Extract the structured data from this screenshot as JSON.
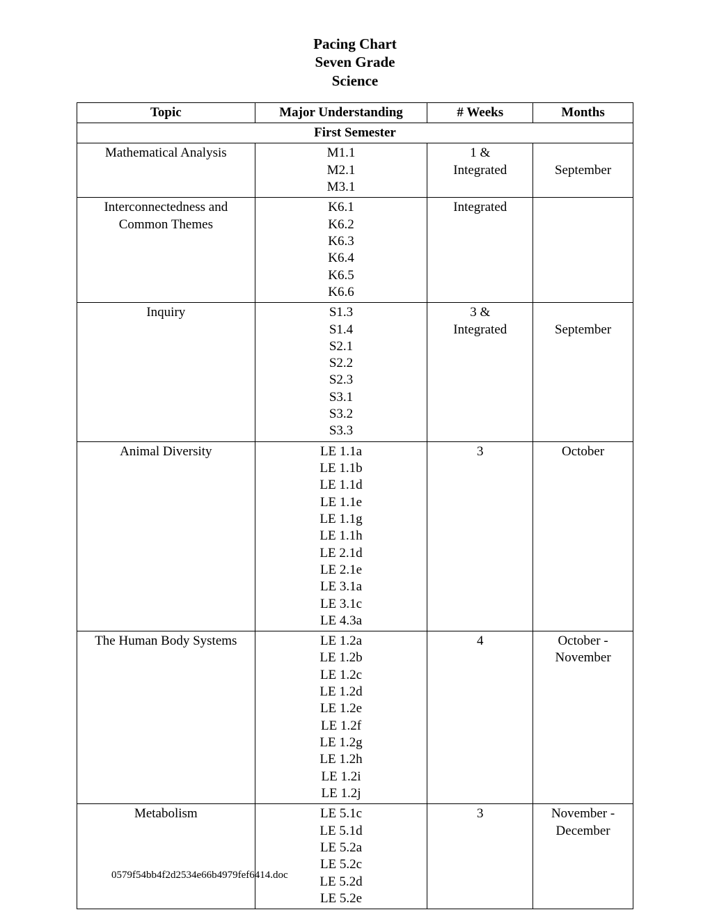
{
  "title": {
    "line1": "Pacing Chart",
    "line2": "Seven Grade",
    "line3": "Science"
  },
  "headers": {
    "topic": "Topic",
    "major": "Major Understanding",
    "weeks": "# Weeks",
    "months": "Months"
  },
  "semester_label": "First Semester",
  "rows": [
    {
      "topic": [
        "Mathematical Analysis"
      ],
      "major": [
        "M1.1",
        "M2.1",
        "M3.1"
      ],
      "weeks": [
        "1 &",
        "Integrated"
      ],
      "months": [
        "",
        "September"
      ]
    },
    {
      "topic": [
        "Interconnectedness and",
        "Common Themes"
      ],
      "major": [
        "K6.1",
        "K6.2",
        "K6.3",
        "K6.4",
        "K6.5",
        "K6.6"
      ],
      "weeks": [
        "Integrated"
      ],
      "months": []
    },
    {
      "topic": [
        "Inquiry"
      ],
      "major": [
        "S1.3",
        "S1.4",
        "S2.1",
        "S2.2",
        "S2.3",
        "S3.1",
        "S3.2",
        "S3.3"
      ],
      "weeks": [
        "3 &",
        "Integrated"
      ],
      "months": [
        "",
        "September"
      ]
    },
    {
      "topic": [
        "Animal Diversity"
      ],
      "major": [
        "LE 1.1a",
        "LE 1.1b",
        "LE 1.1d",
        "LE 1.1e",
        "LE 1.1g",
        "LE 1.1h",
        "LE 2.1d",
        "LE 2.1e",
        "LE 3.1a",
        "LE 3.1c",
        "LE 4.3a"
      ],
      "weeks": [
        "3"
      ],
      "months": [
        "October"
      ]
    },
    {
      "topic": [
        "The Human Body Systems"
      ],
      "major": [
        "LE 1.2a",
        "LE 1.2b",
        "LE 1.2c",
        "LE 1.2d",
        "LE 1.2e",
        "LE 1.2f",
        "LE 1.2g",
        "LE 1.2h",
        "LE 1.2i",
        "LE 1.2j"
      ],
      "weeks": [
        "4"
      ],
      "months": [
        "October -",
        "November"
      ]
    },
    {
      "topic": [
        "Metabolism"
      ],
      "major": [
        "LE 5.1c",
        "LE 5.1d",
        "LE 5.2a",
        "LE 5.2c",
        "LE 5.2d",
        "LE 5.2e"
      ],
      "weeks": [
        "3"
      ],
      "months": [
        "November -",
        "December"
      ]
    }
  ],
  "footer": "0579f54bb4f2d2534e66b4979fef6414.doc"
}
